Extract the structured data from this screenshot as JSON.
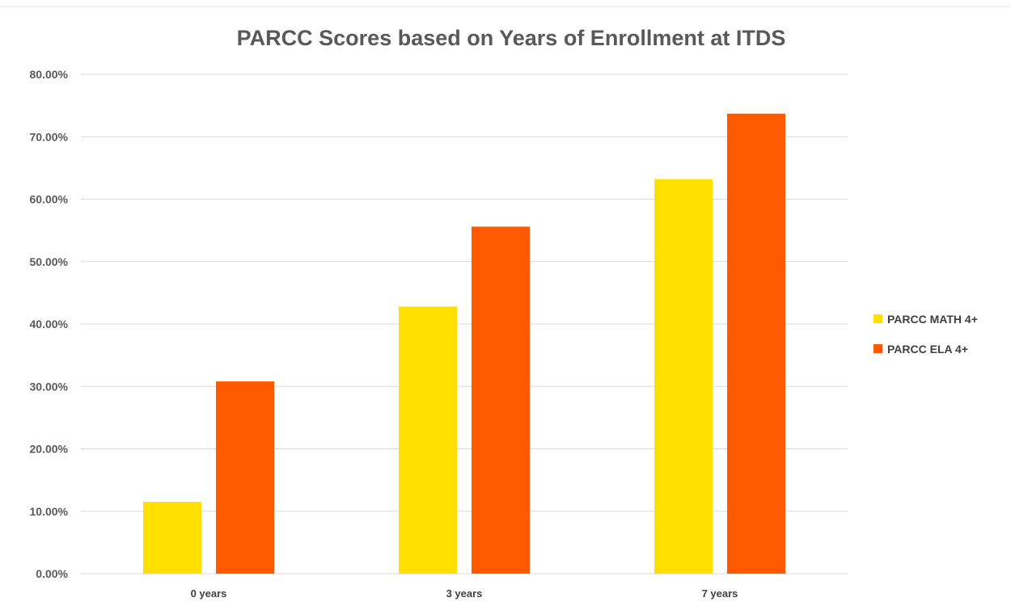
{
  "chart_data": {
    "type": "bar",
    "title": "PARCC Scores based on Years of Enrollment at ITDS",
    "xlabel": "",
    "ylabel": "",
    "categories": [
      "0 years",
      "3 years",
      "7 years"
    ],
    "series": [
      {
        "name": "PARCC MATH 4+",
        "values": [
          0.115,
          0.428,
          0.632
        ],
        "color": "#FFE000"
      },
      {
        "name": "PARCC ELA 4+",
        "values": [
          0.308,
          0.556,
          0.737
        ],
        "color": "#FF5A00"
      }
    ],
    "ylim": [
      0,
      0.8
    ],
    "yticks": [
      {
        "value": 0.0,
        "label": "0.00%"
      },
      {
        "value": 0.1,
        "label": "10.00%"
      },
      {
        "value": 0.2,
        "label": "20.00%"
      },
      {
        "value": 0.3,
        "label": "30.00%"
      },
      {
        "value": 0.4,
        "label": "40.00%"
      },
      {
        "value": 0.5,
        "label": "50.00%"
      },
      {
        "value": 0.6,
        "label": "60.00%"
      },
      {
        "value": 0.7,
        "label": "70.00%"
      },
      {
        "value": 0.8,
        "label": "80.00%"
      }
    ],
    "grid": true,
    "legend": "right"
  }
}
